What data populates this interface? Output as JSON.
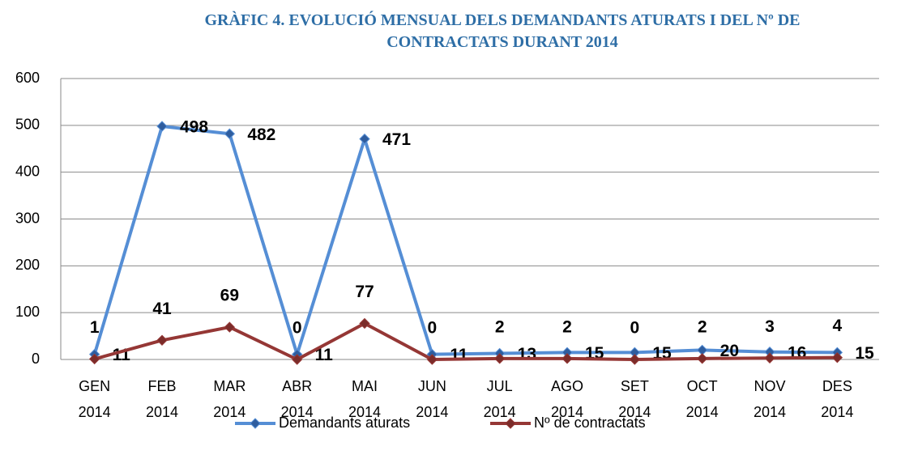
{
  "chart_data": {
    "type": "line",
    "title": "GRÀFIC 4. EVOLUCIÓ MENSUAL DELS DEMANDANTS ATURATS I DEL Nº DE CONTRACTATS DURANT 2014",
    "categories": [
      "GEN 2014",
      "FEB 2014",
      "MAR 2014",
      "ABR 2014",
      "MAI 2014",
      "JUN 2014",
      "JUL 2014",
      "AGO 2014",
      "SET 2014",
      "OCT 2014",
      "NOV 2014",
      "DES 2014"
    ],
    "series": [
      {
        "name": "Demandants aturats",
        "color": "#558ed5",
        "marker_color": "#2f5d9e",
        "label_color": "#1f3050",
        "values": [
          11,
          498,
          482,
          11,
          471,
          11,
          13,
          15,
          15,
          20,
          16,
          15
        ]
      },
      {
        "name": "Nº de contractats",
        "color": "#953735",
        "marker_color": "#7b2c2a",
        "label_color": "#7b2c2a",
        "values": [
          1,
          41,
          69,
          0,
          77,
          0,
          2,
          2,
          0,
          2,
          3,
          4
        ]
      }
    ],
    "ylim": [
      0,
      600
    ],
    "yticks": [
      0,
      100,
      200,
      300,
      400,
      500,
      600
    ],
    "grid": true,
    "legend": "bottom"
  }
}
